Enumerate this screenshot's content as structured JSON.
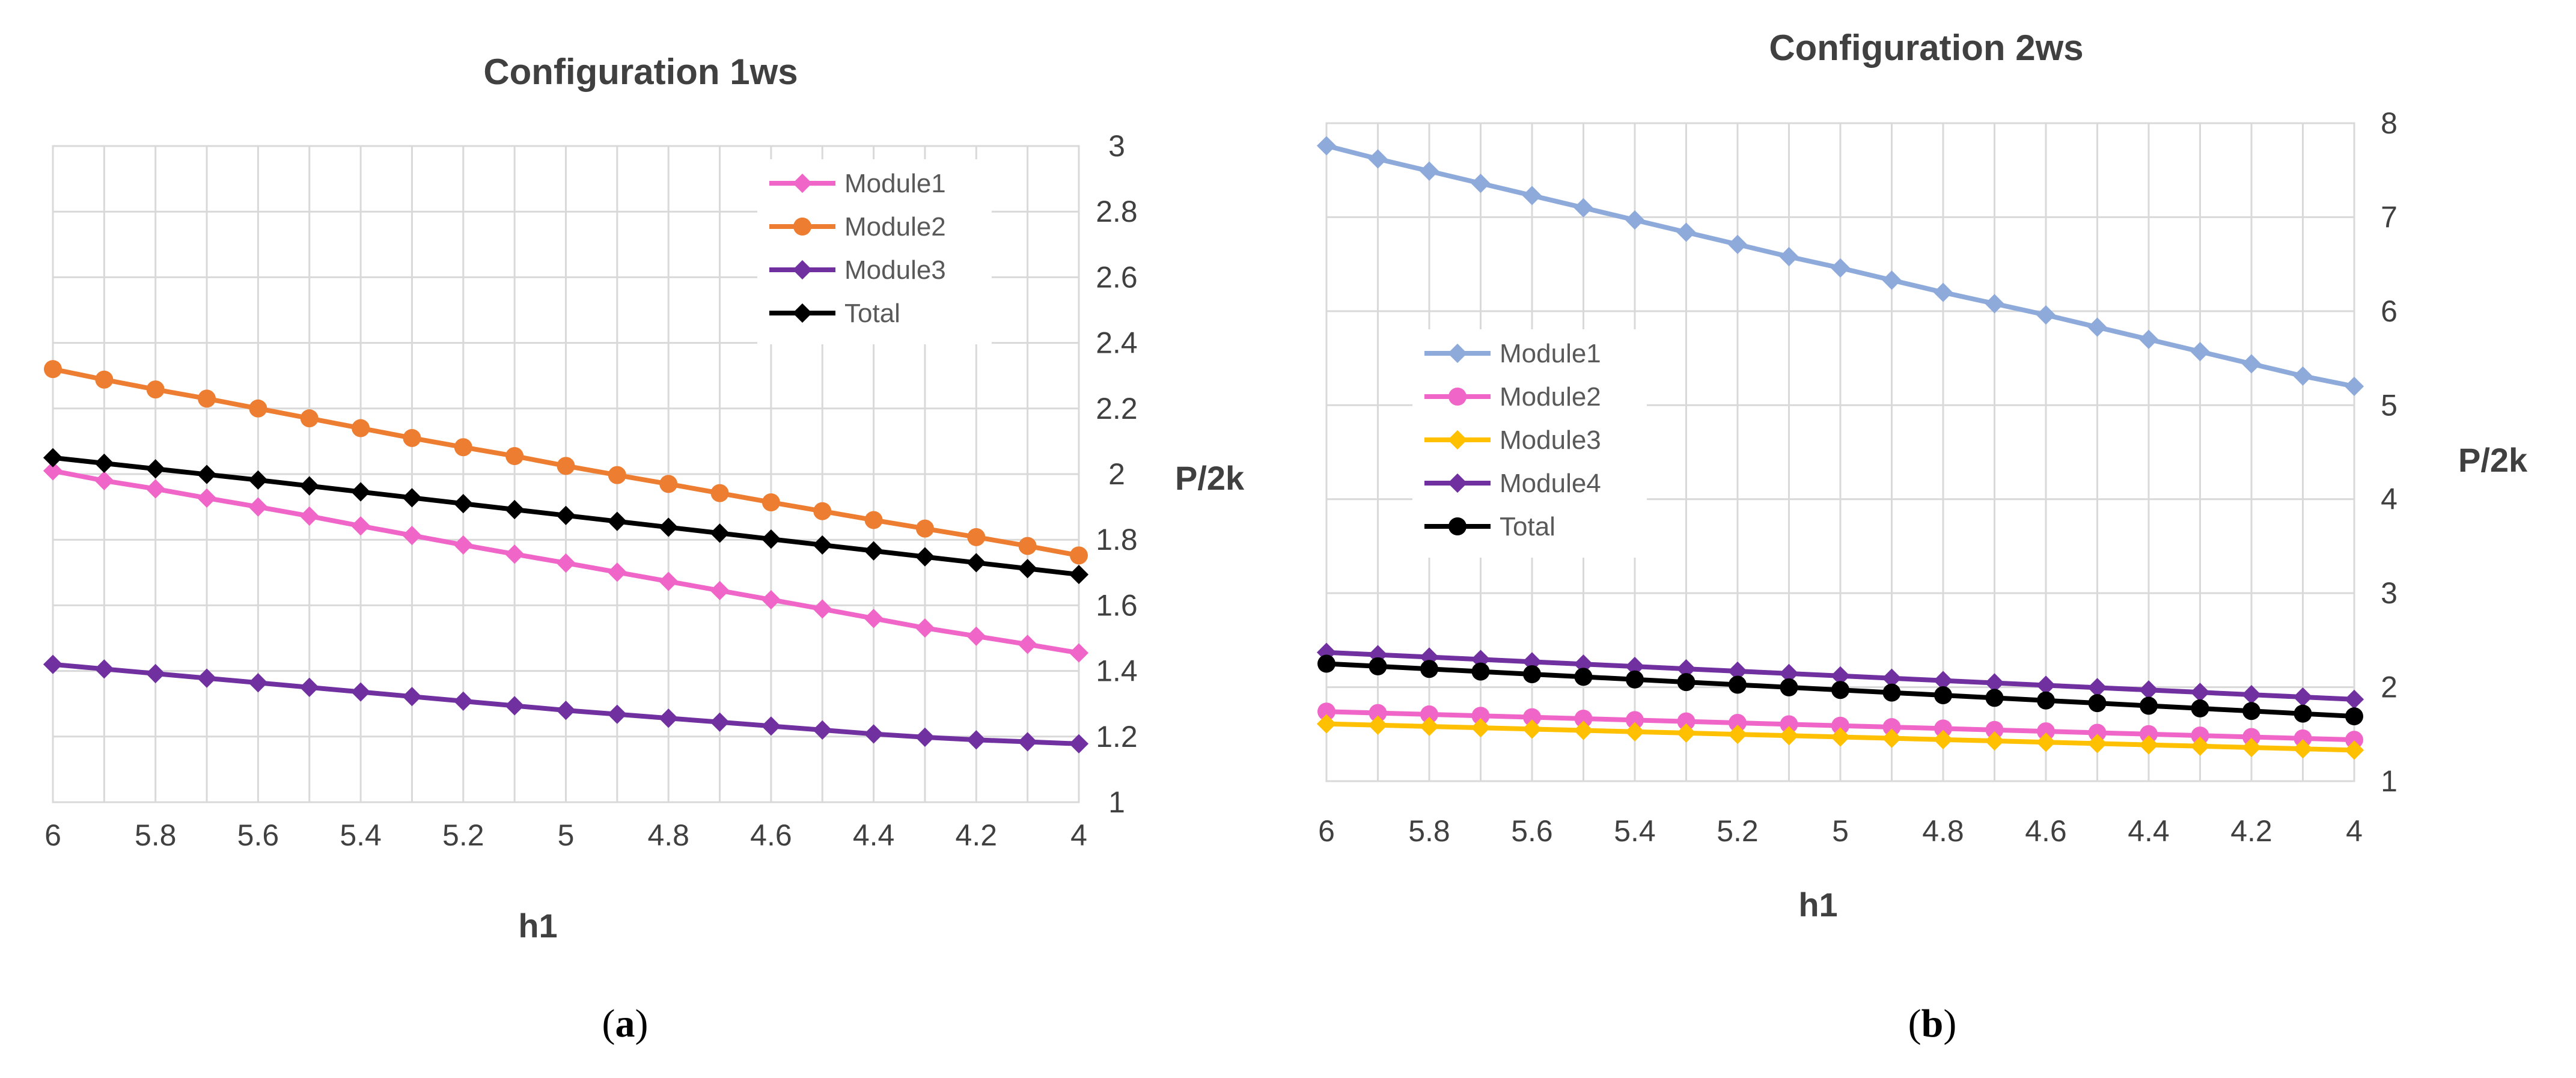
{
  "chart_data": [
    {
      "type": "line",
      "title": "Configuration 1ws",
      "xlabel": "h1",
      "ylabel": "P/2k",
      "caption_letter": "a",
      "x": [
        6,
        5.9,
        5.8,
        5.7,
        5.6,
        5.5,
        5.4,
        5.3,
        5.2,
        5.1,
        5,
        4.9,
        4.8,
        4.7,
        4.6,
        4.5,
        4.4,
        4.3,
        4.2,
        4.1,
        4
      ],
      "x_ticks": [
        6,
        5.8,
        5.6,
        5.4,
        5.2,
        5,
        4.8,
        4.6,
        4.4,
        4.2,
        4
      ],
      "x_tick_labels": [
        "6",
        "5.8",
        "5.6",
        "5.4",
        "5.2",
        "5",
        "4.8",
        "4.6",
        "4.4",
        "4.2",
        "4"
      ],
      "xlim": [
        6,
        4
      ],
      "ylim": [
        1,
        3
      ],
      "y_ticks": [
        1,
        1.2,
        1.4,
        1.6,
        1.8,
        2,
        2.2,
        2.4,
        2.6,
        2.8,
        3
      ],
      "y_tick_labels": [
        "1",
        "1.2",
        "1.4",
        "1.6",
        "1.8",
        "2",
        "2.2",
        "2.4",
        "2.6",
        "2.8",
        "3"
      ],
      "grid": true,
      "legend_position": "top-right",
      "series": [
        {
          "name": "Module1",
          "color": "#f066c8",
          "marker": "diamond",
          "values": [
            2.01,
            1.98,
            1.955,
            1.927,
            1.9,
            1.872,
            1.842,
            1.813,
            1.784,
            1.756,
            1.729,
            1.701,
            1.673,
            1.645,
            1.617,
            1.589,
            1.56,
            1.531,
            1.506,
            1.481,
            1.455
          ]
        },
        {
          "name": "Module2",
          "color": "#ed7d31",
          "marker": "circle",
          "values": [
            2.32,
            2.288,
            2.258,
            2.23,
            2.2,
            2.17,
            2.14,
            2.11,
            2.082,
            2.055,
            2.025,
            1.997,
            1.97,
            1.942,
            1.914,
            1.887,
            1.86,
            1.834,
            1.808,
            1.781,
            1.752
          ]
        },
        {
          "name": "Module3",
          "color": "#7030a0",
          "marker": "diamond",
          "values": [
            1.42,
            1.406,
            1.392,
            1.378,
            1.364,
            1.35,
            1.336,
            1.322,
            1.308,
            1.294,
            1.28,
            1.268,
            1.256,
            1.244,
            1.232,
            1.22,
            1.208,
            1.198,
            1.19,
            1.184,
            1.178
          ]
        },
        {
          "name": "Total",
          "color": "#000000",
          "marker": "diamond",
          "values": [
            2.05,
            2.033,
            2.016,
            1.999,
            1.982,
            1.964,
            1.946,
            1.928,
            1.91,
            1.892,
            1.874,
            1.856,
            1.838,
            1.82,
            1.802,
            1.784,
            1.766,
            1.748,
            1.73,
            1.712,
            1.694
          ]
        }
      ]
    },
    {
      "type": "line",
      "title": "Configuration 2ws",
      "xlabel": "h1",
      "ylabel": "P/2k",
      "caption_letter": "b",
      "x": [
        6,
        5.9,
        5.8,
        5.7,
        5.6,
        5.5,
        5.4,
        5.3,
        5.2,
        5.1,
        5,
        4.9,
        4.8,
        4.7,
        4.6,
        4.5,
        4.4,
        4.3,
        4.2,
        4.1,
        4
      ],
      "x_ticks": [
        6,
        5.8,
        5.6,
        5.4,
        5.2,
        5,
        4.8,
        4.6,
        4.4,
        4.2,
        4
      ],
      "x_tick_labels": [
        "6",
        "5.8",
        "5.6",
        "5.4",
        "5.2",
        "5",
        "4.8",
        "4.6",
        "4.4",
        "4.2",
        "4"
      ],
      "xlim": [
        6,
        4
      ],
      "ylim": [
        1,
        8
      ],
      "y_ticks": [
        1,
        2,
        3,
        4,
        5,
        6,
        7,
        8
      ],
      "y_tick_labels": [
        "1",
        "2",
        "3",
        "4",
        "5",
        "6",
        "7",
        "8"
      ],
      "grid": true,
      "legend_position": "middle-left",
      "series": [
        {
          "name": "Module1",
          "color": "#8eaadb",
          "marker": "diamond",
          "values": [
            7.76,
            7.62,
            7.49,
            7.36,
            7.23,
            7.1,
            6.97,
            6.84,
            6.71,
            6.58,
            6.46,
            6.33,
            6.2,
            6.08,
            5.96,
            5.83,
            5.7,
            5.57,
            5.44,
            5.31,
            5.2
          ]
        },
        {
          "name": "Module2",
          "color": "#f066c8",
          "marker": "circle",
          "values": [
            1.74,
            1.725,
            1.71,
            1.695,
            1.68,
            1.665,
            1.65,
            1.635,
            1.62,
            1.605,
            1.59,
            1.575,
            1.56,
            1.545,
            1.53,
            1.515,
            1.5,
            1.485,
            1.47,
            1.455,
            1.44
          ]
        },
        {
          "name": "Module3",
          "color": "#ffc000",
          "marker": "diamond",
          "values": [
            1.61,
            1.596,
            1.582,
            1.568,
            1.554,
            1.54,
            1.526,
            1.512,
            1.498,
            1.484,
            1.47,
            1.456,
            1.442,
            1.428,
            1.414,
            1.4,
            1.386,
            1.372,
            1.358,
            1.344,
            1.33
          ]
        },
        {
          "name": "Module4",
          "color": "#7030a0",
          "marker": "diamond",
          "values": [
            2.37,
            2.345,
            2.32,
            2.295,
            2.27,
            2.245,
            2.22,
            2.195,
            2.17,
            2.145,
            2.12,
            2.095,
            2.07,
            2.045,
            2.02,
            1.995,
            1.97,
            1.945,
            1.92,
            1.895,
            1.87
          ]
        },
        {
          "name": "Total",
          "color": "#000000",
          "marker": "circle",
          "values": [
            2.25,
            2.222,
            2.194,
            2.166,
            2.138,
            2.11,
            2.082,
            2.054,
            2.026,
            1.998,
            1.97,
            1.942,
            1.914,
            1.886,
            1.858,
            1.83,
            1.802,
            1.774,
            1.746,
            1.718,
            1.69
          ]
        }
      ]
    }
  ]
}
